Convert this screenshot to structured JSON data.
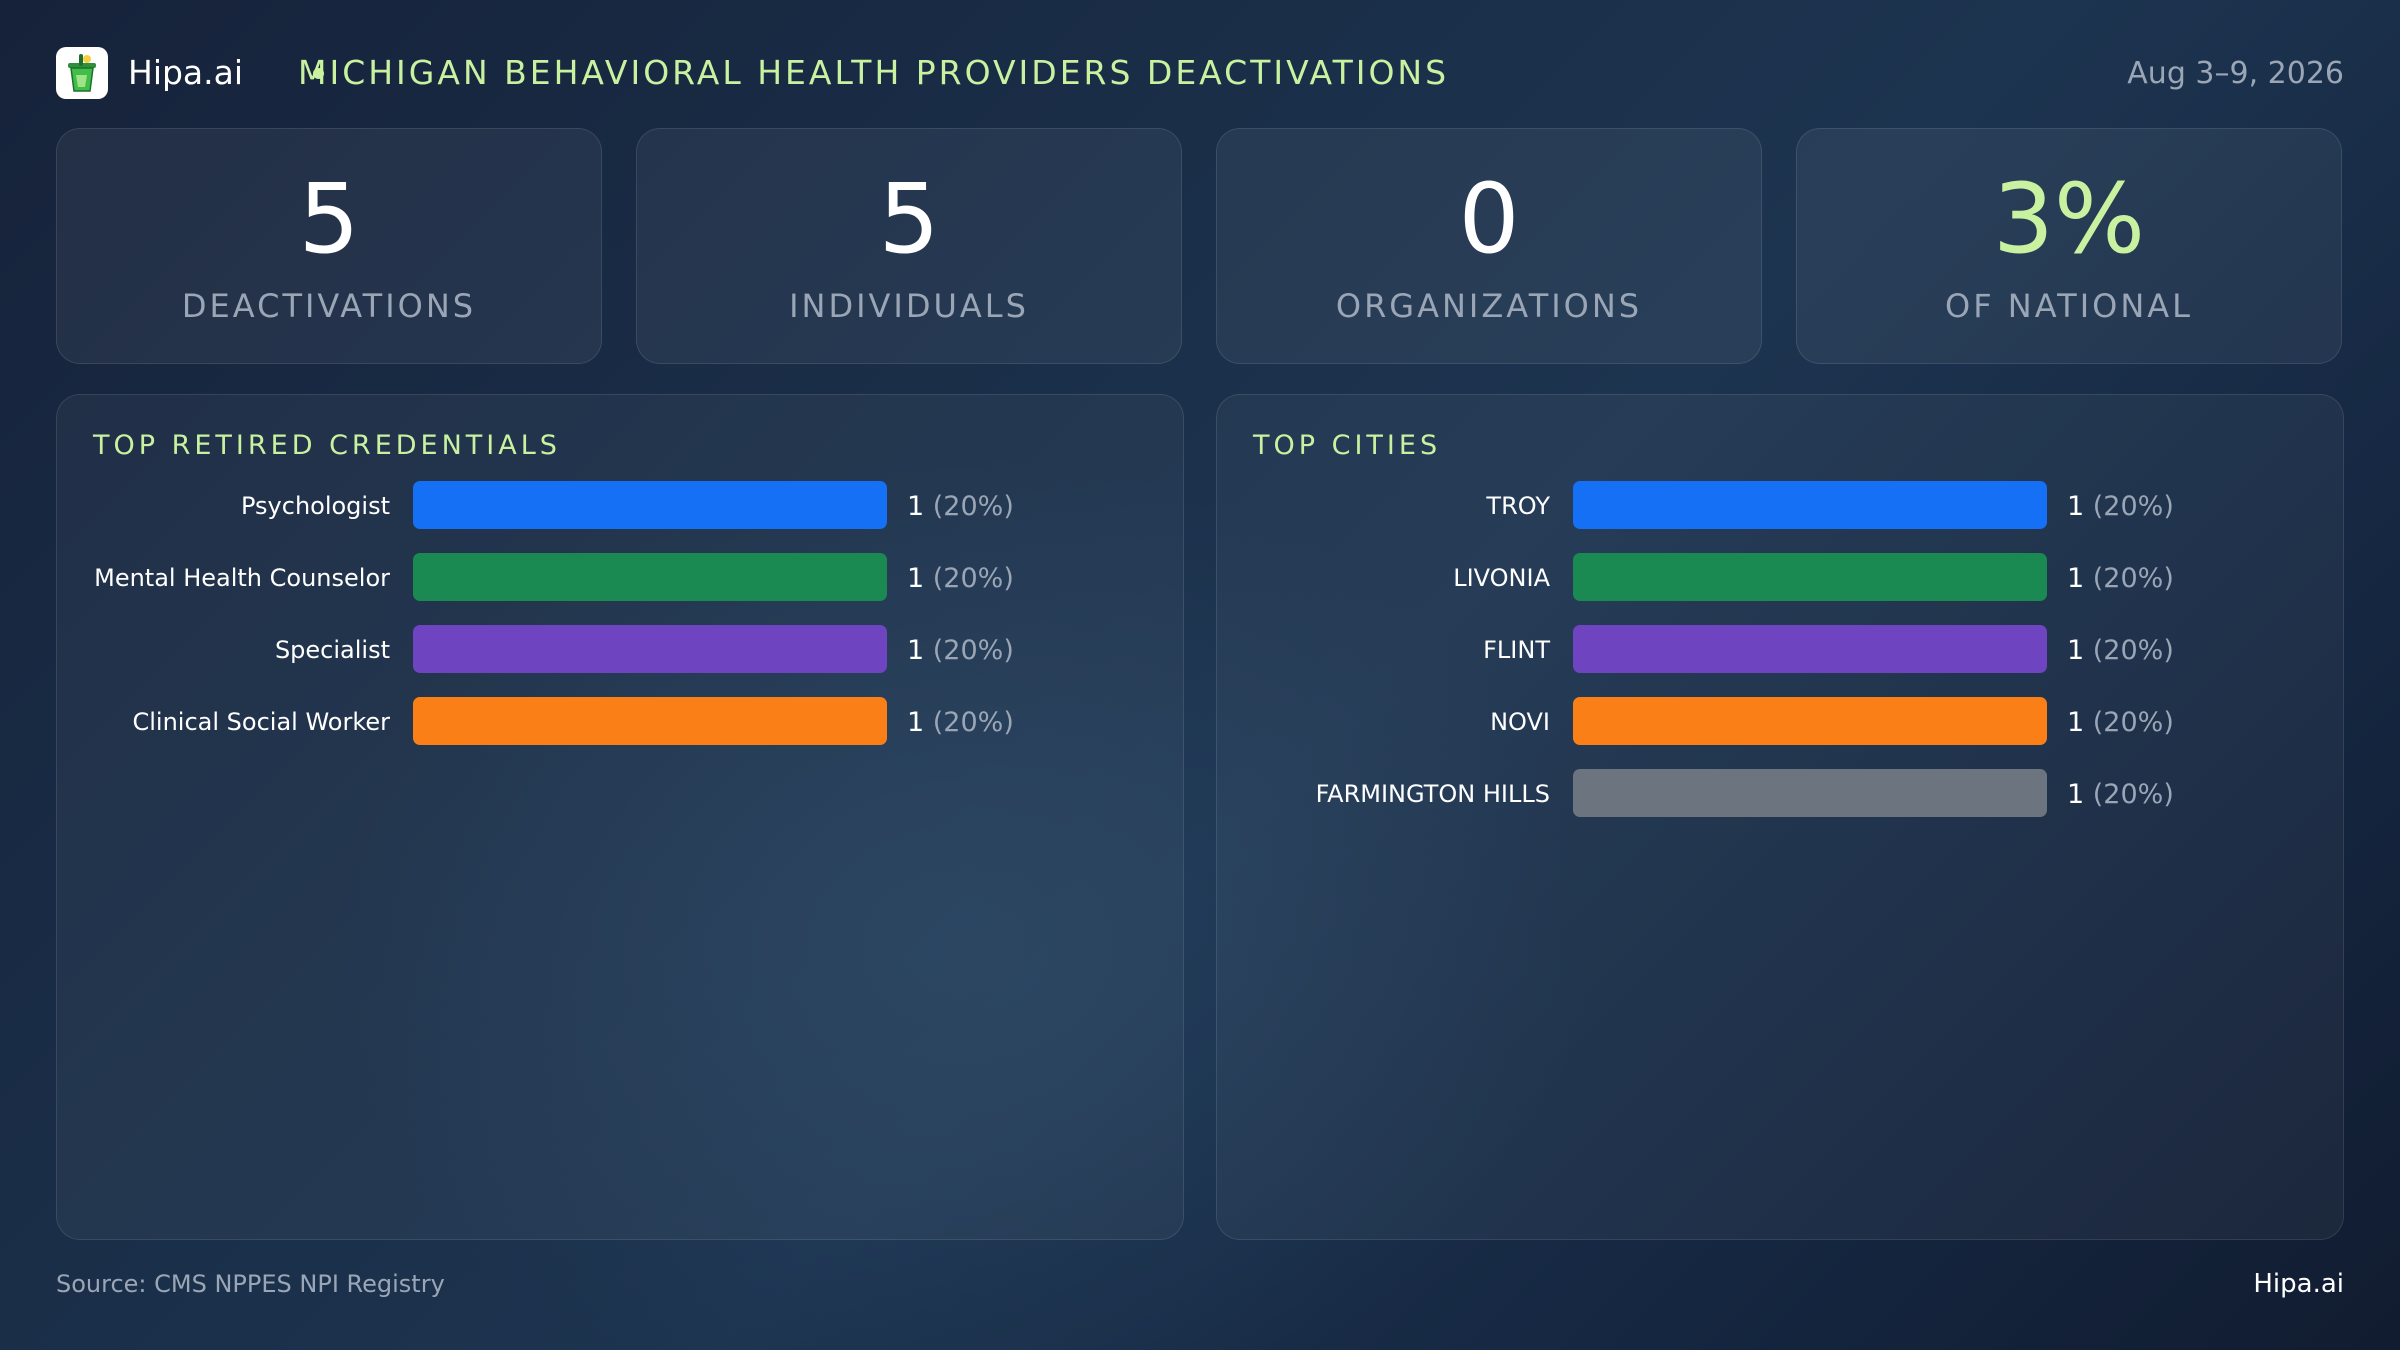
{
  "header": {
    "brand": "Hipa.ai",
    "title": "MICHIGAN BEHAVIORAL HEALTH PROVIDERS DEACTIVATIONS",
    "date": "Aug 3–9, 2026"
  },
  "stats": [
    {
      "value": "5",
      "label": "DEACTIVATIONS"
    },
    {
      "value": "5",
      "label": "INDIVIDUALS"
    },
    {
      "value": "0",
      "label": "ORGANIZATIONS"
    },
    {
      "value": "3%",
      "label": "OF NATIONAL"
    }
  ],
  "colors": {
    "accent": "#c9f2a0",
    "blue": "#1570f5",
    "green": "#1b8a52",
    "purple": "#6f44c1",
    "orange": "#fb7f17",
    "gray": "#6c757f"
  },
  "chart_data": [
    {
      "type": "bar",
      "orientation": "horizontal",
      "title": "TOP RETIRED CREDENTIALS",
      "categories": [
        "Psychologist",
        "Mental Health Counselor",
        "Specialist",
        "Clinical Social Worker"
      ],
      "values": [
        1,
        1,
        1,
        1
      ],
      "value_labels": [
        "1 (20%)",
        "1 (20%)",
        "1 (20%)",
        "1 (20%)"
      ],
      "colors": [
        "#1570f5",
        "#1b8a52",
        "#6f44c1",
        "#fb7f17"
      ],
      "xlim": [
        0,
        1
      ]
    },
    {
      "type": "bar",
      "orientation": "horizontal",
      "title": "TOP CITIES",
      "categories": [
        "TROY",
        "LIVONIA",
        "FLINT",
        "NOVI",
        "FARMINGTON HILLS"
      ],
      "values": [
        1,
        1,
        1,
        1,
        1
      ],
      "value_labels": [
        "1 (20%)",
        "1 (20%)",
        "1 (20%)",
        "1 (20%)",
        "1 (20%)"
      ],
      "colors": [
        "#1570f5",
        "#1b8a52",
        "#6f44c1",
        "#fb7f17",
        "#6c757f"
      ],
      "xlim": [
        0,
        1
      ]
    }
  ],
  "footer": {
    "source": "Source: CMS NPPES NPI Registry",
    "brand": "Hipa.ai"
  }
}
